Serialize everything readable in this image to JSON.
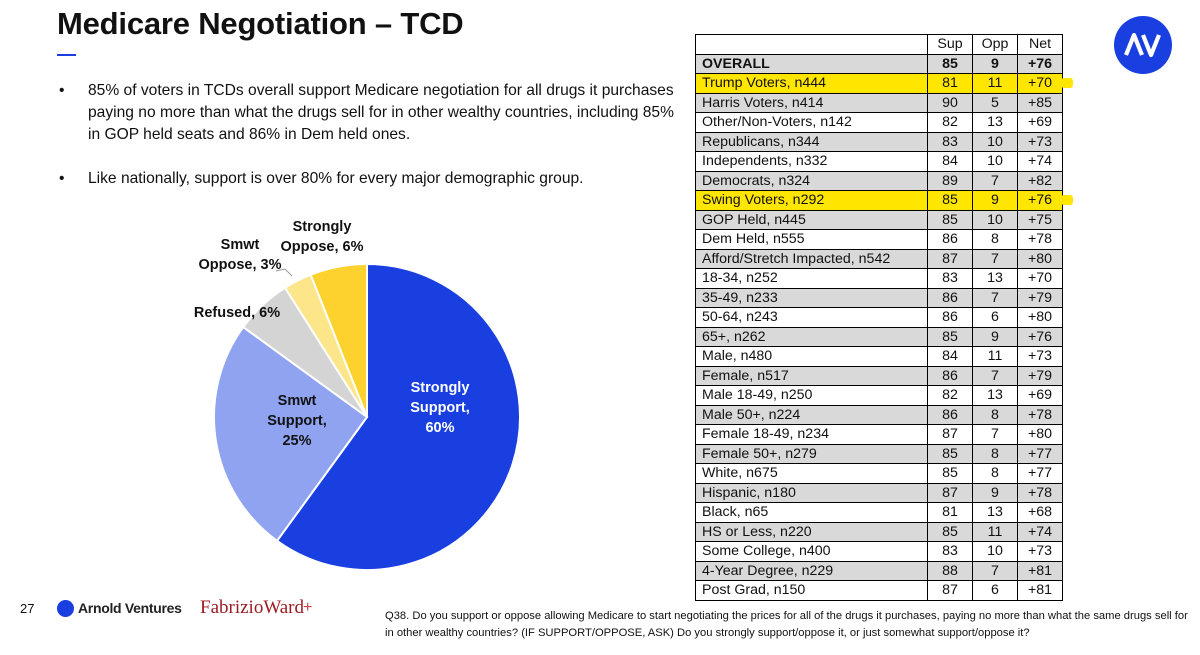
{
  "slide": {
    "title": "Medicare Negotiation – TCD",
    "bullets": [
      "85% of voters in TCDs overall support Medicare negotiation for all drugs it purchases paying no more than what the drugs sell for in other wealthy countries, including 85% in GOP held seats and 86% in Dem held ones.",
      "Like nationally, support is over 80% for every major demographic group."
    ],
    "page_number": "27",
    "footnote": "Q38. Do you support or oppose allowing Medicare to start negotiating the prices for all of the drugs it purchases, paying no more than what the same drugs sell for in other wealthy countries? (IF SUPPORT/OPPOSE, ASK) Do you strongly support/oppose it, or just somewhat support/oppose it?",
    "logos": {
      "corner_logo_text": "AV",
      "arnold_ventures": "Arnold Ventures",
      "fabrizio_ward": "FabrizioWard",
      "fabrizio_ward_plus": "+"
    },
    "colors": {
      "brand_blue": "#1a3fe0",
      "highlight": "#ffe600",
      "shade": "#d9d9d9"
    }
  },
  "chart_data": [
    {
      "type": "pie",
      "slices": [
        {
          "label_lines": [
            "Strongly",
            "Support,",
            "60%"
          ],
          "value": 60,
          "color": "#1a3fe0",
          "label_color": "#ffffff"
        },
        {
          "label_lines": [
            "Smwt",
            "Support,",
            "25%"
          ],
          "value": 25,
          "color": "#8fa3f0",
          "label_color": "#111111"
        },
        {
          "label_lines": [
            "Refused, 6%"
          ],
          "value": 6,
          "color": "#d4d4d4",
          "label_color": "#111111"
        },
        {
          "label_lines": [
            "Smwt",
            "Oppose, 3%"
          ],
          "value": 3,
          "color": "#fde58a",
          "label_color": "#111111"
        },
        {
          "label_lines": [
            "Strongly",
            "Oppose, 6%"
          ],
          "value": 6,
          "color": "#fdd22e",
          "label_color": "#111111"
        }
      ]
    },
    {
      "type": "table",
      "columns": [
        "Sup",
        "Opp",
        "Net"
      ],
      "rows": [
        {
          "label": "OVERALL",
          "values": [
            "85",
            "9",
            "+76"
          ],
          "style": "overall"
        },
        {
          "label": "Trump Voters, n444",
          "values": [
            "81",
            "11",
            "+70"
          ],
          "style": "highlight"
        },
        {
          "label": "Harris Voters, n414",
          "values": [
            "90",
            "5",
            "+85"
          ],
          "style": "shade"
        },
        {
          "label": "Other/Non-Voters, n142",
          "values": [
            "82",
            "13",
            "+69"
          ],
          "style": "plain"
        },
        {
          "label": "Republicans, n344",
          "values": [
            "83",
            "10",
            "+73"
          ],
          "style": "shade"
        },
        {
          "label": "Independents, n332",
          "values": [
            "84",
            "10",
            "+74"
          ],
          "style": "plain"
        },
        {
          "label": "Democrats, n324",
          "values": [
            "89",
            "7",
            "+82"
          ],
          "style": "shade"
        },
        {
          "label": "Swing Voters, n292",
          "values": [
            "85",
            "9",
            "+76"
          ],
          "style": "highlight"
        },
        {
          "label": "GOP Held, n445",
          "values": [
            "85",
            "10",
            "+75"
          ],
          "style": "shade"
        },
        {
          "label": "Dem Held, n555",
          "values": [
            "86",
            "8",
            "+78"
          ],
          "style": "plain"
        },
        {
          "label": "Afford/Stretch Impacted, n542",
          "values": [
            "87",
            "7",
            "+80"
          ],
          "style": "shade"
        },
        {
          "label": "18-34, n252",
          "values": [
            "83",
            "13",
            "+70"
          ],
          "style": "plain"
        },
        {
          "label": "35-49, n233",
          "values": [
            "86",
            "7",
            "+79"
          ],
          "style": "shade"
        },
        {
          "label": "50-64, n243",
          "values": [
            "86",
            "6",
            "+80"
          ],
          "style": "plain"
        },
        {
          "label": "65+, n262",
          "values": [
            "85",
            "9",
            "+76"
          ],
          "style": "shade"
        },
        {
          "label": "Male, n480",
          "values": [
            "84",
            "11",
            "+73"
          ],
          "style": "plain"
        },
        {
          "label": "Female, n517",
          "values": [
            "86",
            "7",
            "+79"
          ],
          "style": "shade"
        },
        {
          "label": "Male 18-49, n250",
          "values": [
            "82",
            "13",
            "+69"
          ],
          "style": "plain"
        },
        {
          "label": "Male 50+, n224",
          "values": [
            "86",
            "8",
            "+78"
          ],
          "style": "shade"
        },
        {
          "label": "Female 18-49, n234",
          "values": [
            "87",
            "7",
            "+80"
          ],
          "style": "plain"
        },
        {
          "label": "Female 50+, n279",
          "values": [
            "85",
            "8",
            "+77"
          ],
          "style": "shade"
        },
        {
          "label": "White, n675",
          "values": [
            "85",
            "8",
            "+77"
          ],
          "style": "plain"
        },
        {
          "label": "Hispanic, n180",
          "values": [
            "87",
            "9",
            "+78"
          ],
          "style": "shade"
        },
        {
          "label": "Black, n65",
          "values": [
            "81",
            "13",
            "+68"
          ],
          "style": "plain"
        },
        {
          "label": "HS or Less, n220",
          "values": [
            "85",
            "11",
            "+74"
          ],
          "style": "shade"
        },
        {
          "label": "Some College, n400",
          "values": [
            "83",
            "10",
            "+73"
          ],
          "style": "plain"
        },
        {
          "label": "4-Year Degree, n229",
          "values": [
            "88",
            "7",
            "+81"
          ],
          "style": "shade"
        },
        {
          "label": "Post Grad, n150",
          "values": [
            "87",
            "6",
            "+81"
          ],
          "style": "plain"
        }
      ]
    }
  ]
}
